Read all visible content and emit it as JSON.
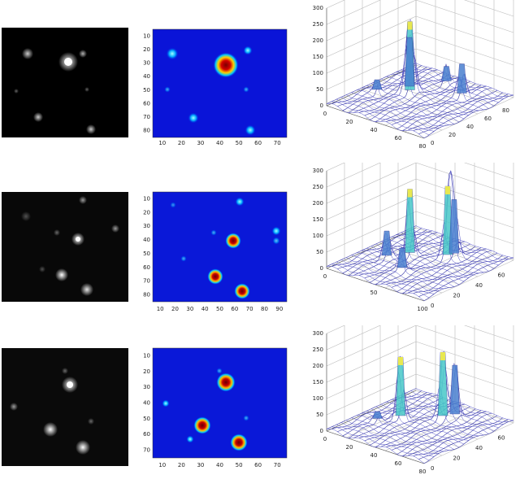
{
  "rows": [
    {
      "heatmap": {
        "x_ticks": [
          "10",
          "20",
          "30",
          "40",
          "50",
          "60",
          "70"
        ],
        "y_ticks": [
          "10",
          "20",
          "30",
          "40",
          "50",
          "60",
          "70",
          "80"
        ]
      },
      "surface": {
        "z_ticks": [
          "0",
          "50",
          "100",
          "150",
          "200",
          "250",
          "300"
        ],
        "x_ticks": [
          "0",
          "20",
          "40",
          "60",
          "80"
        ],
        "y_ticks": [
          "0",
          "20",
          "40",
          "60",
          "80",
          "100"
        ]
      }
    },
    {
      "heatmap": {
        "x_ticks": [
          "10",
          "20",
          "30",
          "40",
          "50",
          "60",
          "70",
          "80",
          "90"
        ],
        "y_ticks": [
          "10",
          "20",
          "30",
          "40",
          "50",
          "60",
          "70",
          "80"
        ]
      },
      "surface": {
        "z_ticks": [
          "0",
          "50",
          "100",
          "150",
          "200",
          "250",
          "300"
        ],
        "x_ticks": [
          "0",
          "50",
          "100"
        ],
        "y_ticks": [
          "0",
          "20",
          "40",
          "60",
          "80"
        ]
      }
    },
    {
      "heatmap": {
        "x_ticks": [
          "10",
          "20",
          "30",
          "40",
          "50",
          "60",
          "70"
        ],
        "y_ticks": [
          "10",
          "20",
          "30",
          "40",
          "50",
          "60",
          "70"
        ]
      },
      "surface": {
        "z_ticks": [
          "0",
          "50",
          "100",
          "150",
          "200",
          "250",
          "300"
        ],
        "x_ticks": [
          "0",
          "20",
          "40",
          "60",
          "80"
        ],
        "y_ticks": [
          "0",
          "20",
          "40",
          "60",
          "80"
        ]
      }
    }
  ]
}
